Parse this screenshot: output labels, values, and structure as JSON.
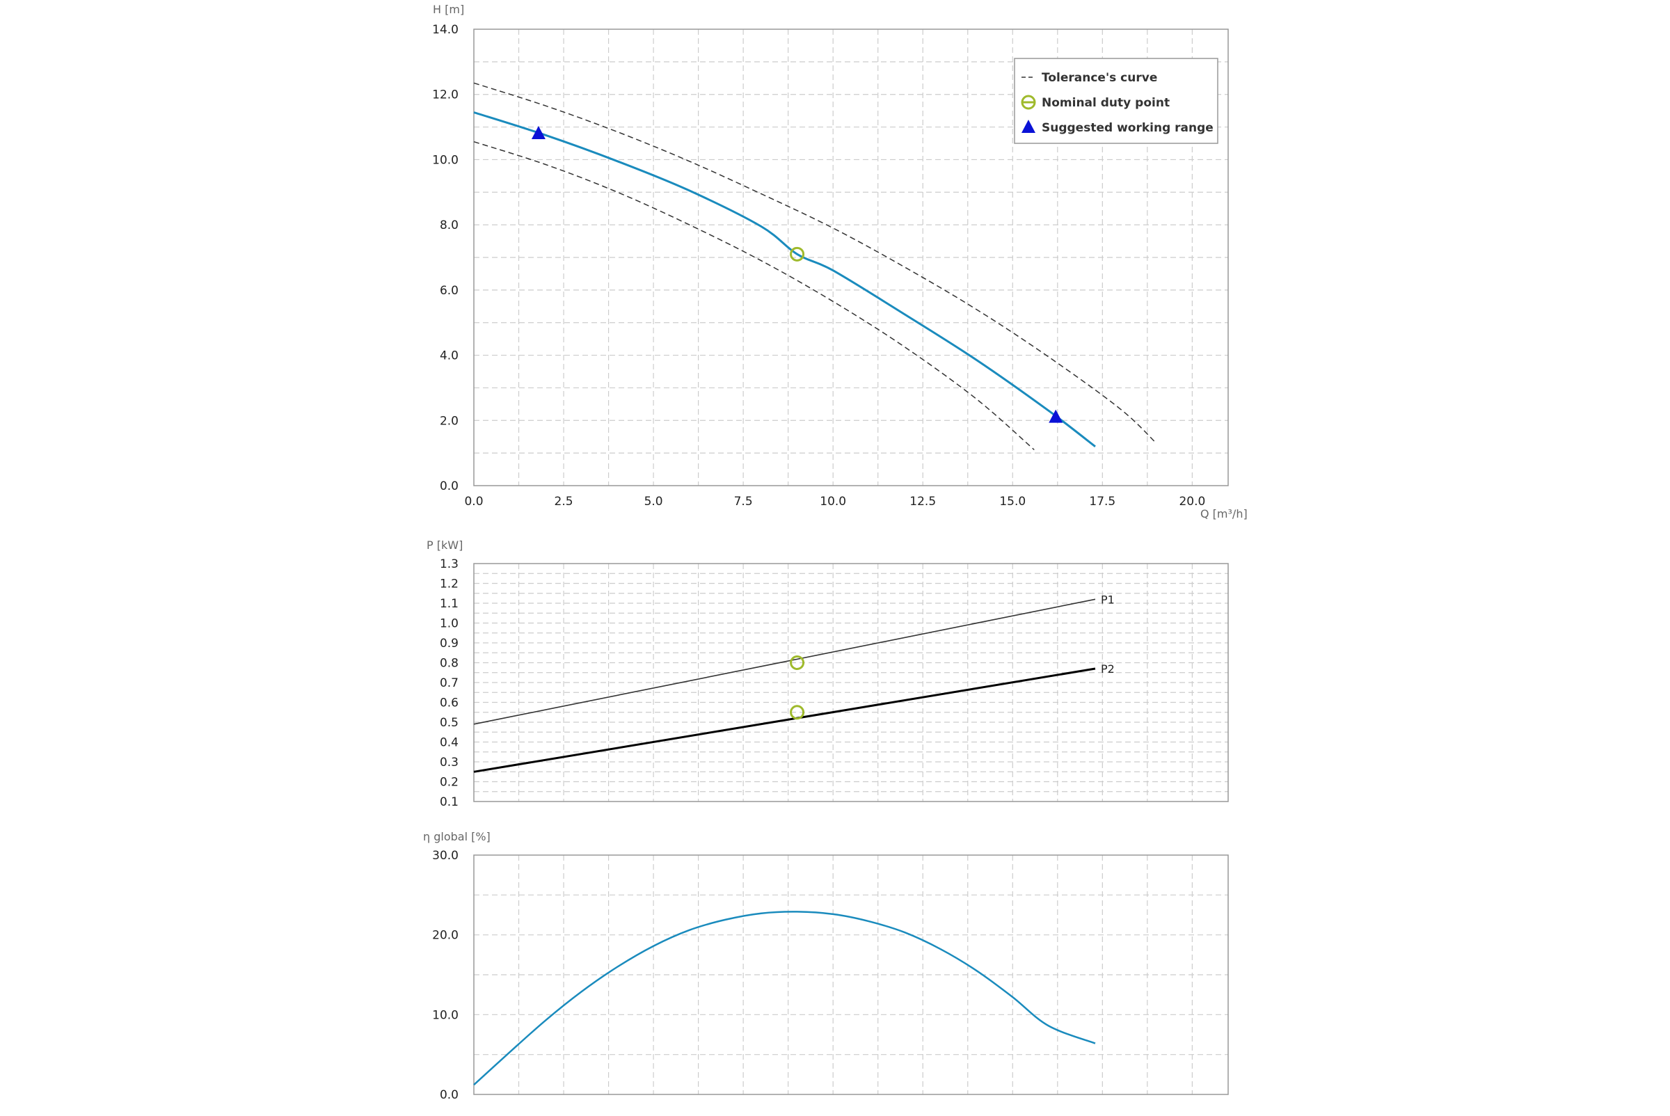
{
  "colors": {
    "main_curve": "#1a8bbd",
    "tolerance": "#333333",
    "duty_point": "#9fba2c",
    "working_range": "#0a12d6",
    "grid": "#cccccc",
    "frame": "#999999",
    "p1_line": "#333333",
    "p2_line": "#000000"
  },
  "chart_data": [
    {
      "type": "line",
      "id": "head",
      "ylabel": "H [m]",
      "xlabel": "Q [m³/h]",
      "xlim": [
        0,
        21
      ],
      "ylim": [
        0,
        14
      ],
      "x_ticks": [
        "0.0",
        "2.5",
        "5.0",
        "7.5",
        "10.0",
        "12.5",
        "15.0",
        "17.5",
        "20.0"
      ],
      "y_ticks": [
        "0.0",
        "2.0",
        "4.0",
        "6.0",
        "8.0",
        "10.0",
        "12.0",
        "14.0"
      ],
      "grid": true,
      "legend": {
        "position": "top-right",
        "entries": [
          {
            "label": "Tolerance's curve",
            "marker": "dashed-line"
          },
          {
            "label": "Nominal duty point",
            "marker": "open-circle"
          },
          {
            "label": "Suggested working range",
            "marker": "triangle"
          }
        ]
      },
      "series": [
        {
          "role": "main",
          "x": [
            0,
            2,
            4,
            6,
            8,
            9,
            10,
            12,
            14,
            16,
            17.3
          ],
          "y": [
            11.45,
            10.75,
            9.95,
            9.05,
            7.95,
            7.1,
            6.6,
            5.25,
            3.85,
            2.3,
            1.2
          ]
        },
        {
          "role": "tolerance-upper",
          "x": [
            0,
            2,
            4,
            6,
            8,
            10,
            12,
            14,
            16,
            18,
            19
          ],
          "y": [
            12.35,
            11.65,
            10.85,
            9.95,
            8.95,
            7.9,
            6.7,
            5.4,
            3.95,
            2.35,
            1.3
          ]
        },
        {
          "role": "tolerance-lower",
          "x": [
            0,
            2,
            4,
            6,
            8,
            10,
            12,
            14,
            15.6
          ],
          "y": [
            10.55,
            9.85,
            9.0,
            8.0,
            6.9,
            5.65,
            4.25,
            2.65,
            1.1
          ]
        }
      ],
      "duty_point": {
        "x": 9.0,
        "y": 7.1
      },
      "working_range": [
        {
          "x": 1.8,
          "y": 10.8
        },
        {
          "x": 16.2,
          "y": 2.1
        }
      ]
    },
    {
      "type": "line",
      "id": "power",
      "ylabel": "P [kW]",
      "xlim": [
        0,
        21
      ],
      "ylim": [
        0.1,
        1.3
      ],
      "y_ticks": [
        "0.1",
        "0.2",
        "0.3",
        "0.4",
        "0.5",
        "0.6",
        "0.7",
        "0.8",
        "0.9",
        "1.0",
        "1.1",
        "1.2",
        "1.3"
      ],
      "grid": true,
      "series": [
        {
          "name": "P1",
          "x": [
            0,
            17.3
          ],
          "y": [
            0.49,
            1.12
          ]
        },
        {
          "name": "P2",
          "x": [
            0,
            17.3
          ],
          "y": [
            0.25,
            0.77
          ]
        }
      ],
      "duty_points": [
        {
          "x": 9.0,
          "y": 0.8
        },
        {
          "x": 9.0,
          "y": 0.55
        }
      ]
    },
    {
      "type": "line",
      "id": "efficiency",
      "ylabel": "η global [%]",
      "xlim": [
        0,
        21
      ],
      "ylim": [
        0,
        30
      ],
      "y_ticks": [
        "0.0",
        "10.0",
        "20.0",
        "30.0"
      ],
      "grid": true,
      "series": [
        {
          "x": [
            0,
            1,
            2,
            3,
            4,
            5,
            6,
            7,
            8,
            9,
            10,
            11,
            12,
            13,
            14,
            15,
            16,
            17.3
          ],
          "y": [
            1.2,
            5.3,
            9.3,
            12.9,
            16.0,
            18.6,
            20.6,
            21.9,
            22.7,
            22.9,
            22.6,
            21.7,
            20.3,
            18.2,
            15.5,
            12.2,
            8.6,
            6.4
          ]
        }
      ]
    }
  ]
}
